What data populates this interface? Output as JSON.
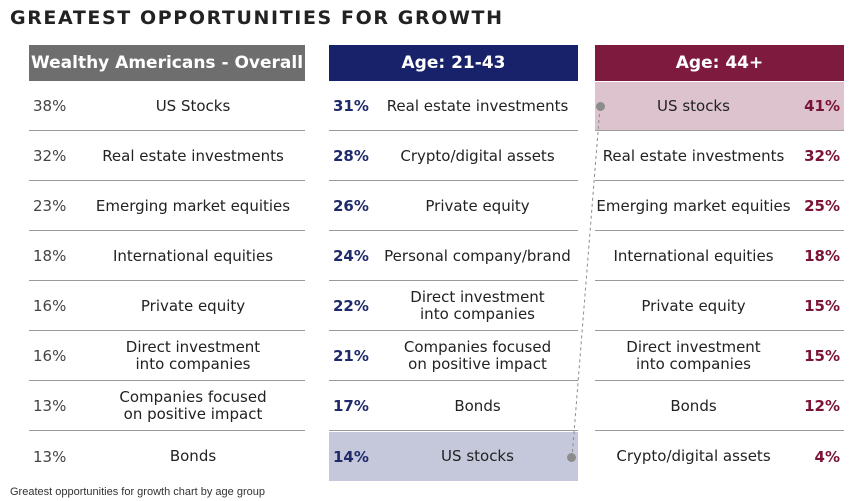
{
  "title": "GREATEST OPPORTUNITIES FOR GROWTH",
  "caption": "Greatest opportunities for growth chart by age group",
  "colors": {
    "overall_header": "#6e6e6e",
    "age_21_43_header": "#18226b",
    "age_44_header": "#7d1a3d",
    "age_21_43_highlight": "#c4c8da",
    "age_44_highlight": "#ddc3cd",
    "age_21_43_text": "#1f2a6b",
    "age_44_text": "#7a1436"
  },
  "chart_data": {
    "type": "table",
    "columns": [
      {
        "header": "Wealthy Americans - Overall",
        "rows": [
          {
            "pct": "38%",
            "label": "US Stocks"
          },
          {
            "pct": "32%",
            "label": "Real estate investments"
          },
          {
            "pct": "23%",
            "label": "Emerging market equities"
          },
          {
            "pct": "18%",
            "label": "International equities"
          },
          {
            "pct": "16%",
            "label": "Private equity"
          },
          {
            "pct": "16%",
            "label": "Direct investment\ninto companies"
          },
          {
            "pct": "13%",
            "label": "Companies focused\non positive impact"
          },
          {
            "pct": "13%",
            "label": "Bonds"
          }
        ]
      },
      {
        "header": "Age: 21-43",
        "highlight_row": 7,
        "rows": [
          {
            "pct": "31%",
            "label": "Real estate investments"
          },
          {
            "pct": "28%",
            "label": "Crypto/digital assets"
          },
          {
            "pct": "26%",
            "label": "Private equity"
          },
          {
            "pct": "24%",
            "label": "Personal company/brand"
          },
          {
            "pct": "22%",
            "label": "Direct investment\ninto companies"
          },
          {
            "pct": "21%",
            "label": "Companies focused\non positive impact"
          },
          {
            "pct": "17%",
            "label": "Bonds"
          },
          {
            "pct": "14%",
            "label": "US stocks"
          }
        ]
      },
      {
        "header": "Age: 44+",
        "highlight_row": 0,
        "rows": [
          {
            "pct": "41%",
            "label": "US stocks"
          },
          {
            "pct": "32%",
            "label": "Real estate investments"
          },
          {
            "pct": "25%",
            "label": "Emerging market equities"
          },
          {
            "pct": "18%",
            "label": "International equities"
          },
          {
            "pct": "15%",
            "label": "Private equity"
          },
          {
            "pct": "15%",
            "label": "Direct investment\ninto companies"
          },
          {
            "pct": "12%",
            "label": "Bonds"
          },
          {
            "pct": "4%",
            "label": "Crypto/digital assets"
          }
        ]
      }
    ]
  }
}
